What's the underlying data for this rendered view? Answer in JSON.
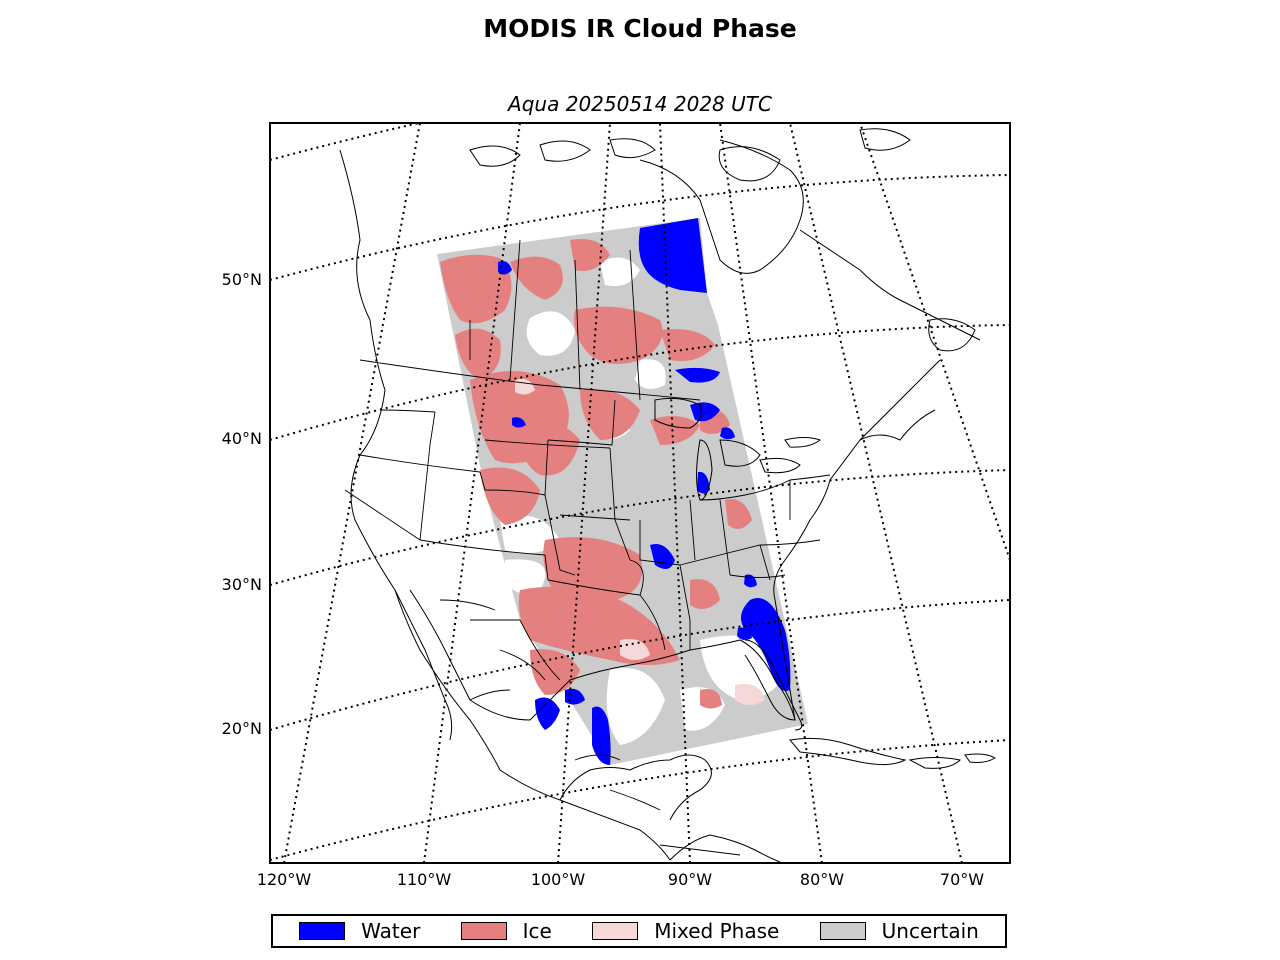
{
  "title": "MODIS IR Cloud Phase",
  "subtitle": "Aqua 20250514 2028 UTC",
  "lat_labels": [
    "50°N",
    "40°N",
    "30°N",
    "20°N"
  ],
  "lon_labels": [
    "120°W",
    "110°W",
    "100°W",
    "90°W",
    "80°W",
    "70°W"
  ],
  "legend": [
    {
      "label": "Water",
      "color": "#0000ff"
    },
    {
      "label": "Ice",
      "color": "#e58080"
    },
    {
      "label": "Mixed Phase",
      "color": "#f6d8d8"
    },
    {
      "label": "Uncertain",
      "color": "#cccccc"
    }
  ],
  "colors": {
    "water": "#0000ff",
    "ice": "#e58080",
    "mixed": "#f6d8d8",
    "uncertain": "#cccccc"
  }
}
